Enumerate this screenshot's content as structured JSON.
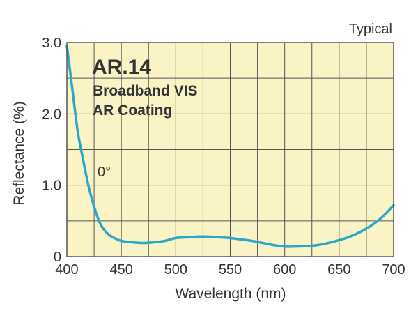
{
  "chart_data": {
    "type": "line",
    "title": "AR.14",
    "subtitle_lines": [
      "Broadband VIS",
      "AR Coating"
    ],
    "corner_note": "Typical",
    "xlabel": "Wavelength (nm)",
    "ylabel": "Reflectance (%)",
    "xlim": [
      400,
      700
    ],
    "ylim": [
      0,
      3.0
    ],
    "x_ticks": [
      400,
      450,
      500,
      550,
      600,
      650,
      700
    ],
    "x_tick_labels": [
      "400",
      "450",
      "500",
      "550",
      "600",
      "650",
      "700"
    ],
    "y_ticks": [
      0,
      1.0,
      2.0,
      3.0
    ],
    "y_tick_labels": [
      "0",
      "1.0",
      "2.0",
      "3.0"
    ],
    "grid": true,
    "series": [
      {
        "name": "0°",
        "color": "#2aa7c9",
        "x": [
          400,
          405,
          410,
          415,
          420,
          425,
          430,
          435,
          440,
          445,
          450,
          460,
          470,
          480,
          490,
          500,
          510,
          520,
          530,
          540,
          550,
          560,
          570,
          580,
          590,
          600,
          610,
          620,
          630,
          640,
          650,
          660,
          670,
          680,
          690,
          700
        ],
        "y": [
          2.95,
          2.35,
          1.75,
          1.35,
          0.98,
          0.7,
          0.48,
          0.36,
          0.29,
          0.25,
          0.22,
          0.2,
          0.19,
          0.2,
          0.22,
          0.26,
          0.27,
          0.28,
          0.28,
          0.27,
          0.26,
          0.24,
          0.22,
          0.19,
          0.16,
          0.14,
          0.14,
          0.145,
          0.16,
          0.19,
          0.23,
          0.28,
          0.35,
          0.44,
          0.56,
          0.72
        ]
      }
    ],
    "colors": {
      "plot_background": "#faf3c5",
      "grid": "#555555",
      "text": "#333333"
    }
  }
}
